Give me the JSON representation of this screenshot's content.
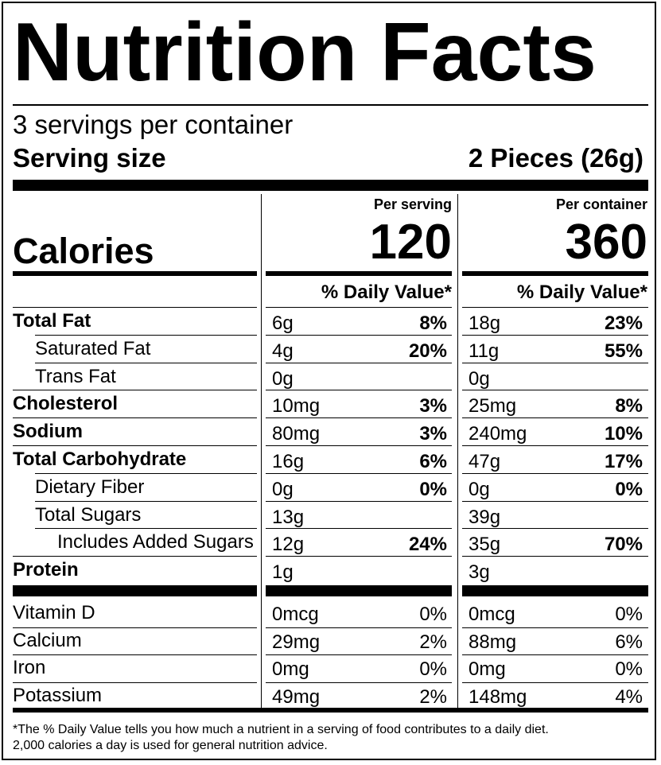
{
  "title": "Nutrition Facts",
  "servings_per_container": "3 servings per container",
  "serving_size_label": "Serving size",
  "serving_size_value": "2 Pieces (26g)",
  "columns": {
    "per_serving": "Per serving",
    "per_container": "Per container"
  },
  "calories_label": "Calories",
  "calories_per_serving": "120",
  "calories_per_container": "360",
  "daily_value_header": "% Daily Value*",
  "nutrients": [
    {
      "name": "Total Fat",
      "bold": true,
      "indent": 0,
      "s_amt": "6g",
      "s_dv": "8%",
      "c_amt": "18g",
      "c_dv": "23%"
    },
    {
      "name": "Saturated Fat",
      "bold": false,
      "indent": 1,
      "s_amt": "4g",
      "s_dv": "20%",
      "c_amt": "11g",
      "c_dv": "55%"
    },
    {
      "name": "Trans Fat",
      "bold": false,
      "indent": 1,
      "s_amt": "0g",
      "s_dv": "",
      "c_amt": "0g",
      "c_dv": ""
    },
    {
      "name": "Cholesterol",
      "bold": true,
      "indent": 0,
      "s_amt": "10mg",
      "s_dv": "3%",
      "c_amt": "25mg",
      "c_dv": "8%"
    },
    {
      "name": "Sodium",
      "bold": true,
      "indent": 0,
      "s_amt": "80mg",
      "s_dv": "3%",
      "c_amt": "240mg",
      "c_dv": "10%"
    },
    {
      "name": "Total Carbohydrate",
      "bold": true,
      "indent": 0,
      "s_amt": "16g",
      "s_dv": "6%",
      "c_amt": "47g",
      "c_dv": "17%"
    },
    {
      "name": "Dietary Fiber",
      "bold": false,
      "indent": 1,
      "s_amt": "0g",
      "s_dv": "0%",
      "c_amt": "0g",
      "c_dv": "0%"
    },
    {
      "name": "Total Sugars",
      "bold": false,
      "indent": 1,
      "s_amt": "13g",
      "s_dv": "",
      "c_amt": "39g",
      "c_dv": ""
    },
    {
      "name": "Includes Added Sugars",
      "bold": false,
      "indent": 2,
      "s_amt": "12g",
      "s_dv": "24%",
      "c_amt": "35g",
      "c_dv": "70%"
    },
    {
      "name": "Protein",
      "bold": true,
      "indent": 0,
      "s_amt": "1g",
      "s_dv": "",
      "c_amt": "3g",
      "c_dv": ""
    }
  ],
  "vitamins": [
    {
      "name": "Vitamin D",
      "s_amt": "0mcg",
      "s_dv": "0%",
      "c_amt": "0mcg",
      "c_dv": "0%"
    },
    {
      "name": "Calcium",
      "s_amt": "29mg",
      "s_dv": "2%",
      "c_amt": "88mg",
      "c_dv": "6%"
    },
    {
      "name": "Iron",
      "s_amt": "0mg",
      "s_dv": "0%",
      "c_amt": "0mg",
      "c_dv": "0%"
    },
    {
      "name": "Potassium",
      "s_amt": "49mg",
      "s_dv": "2%",
      "c_amt": "148mg",
      "c_dv": "4%"
    }
  ],
  "footnote_line1": "*The % Daily Value tells you how much a nutrient in a serving of food contributes to a daily diet.",
  "footnote_line2": "2,000 calories a day is used for general nutrition advice."
}
